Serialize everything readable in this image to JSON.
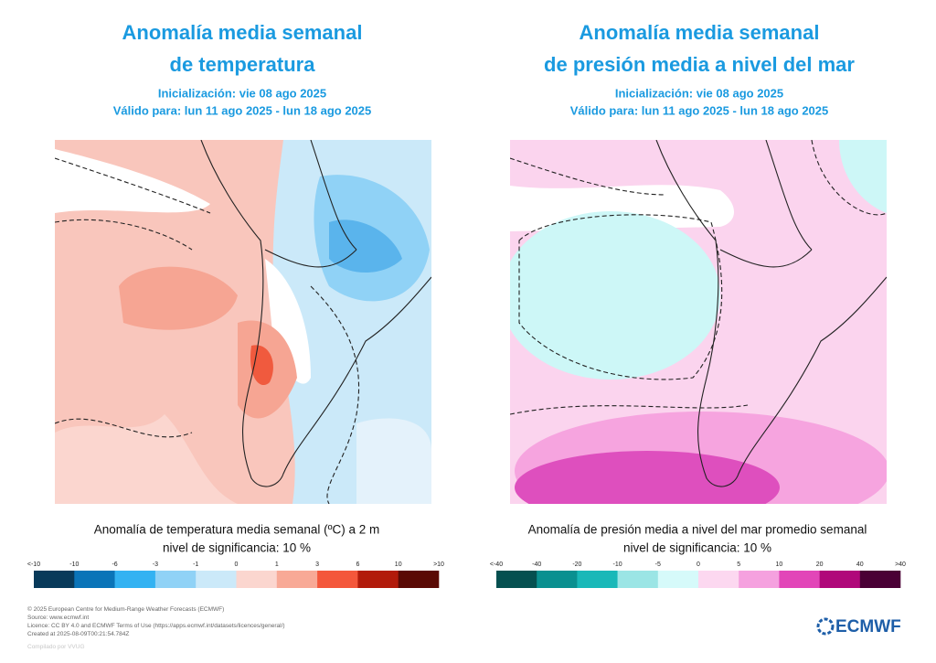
{
  "panels": [
    {
      "title": [
        "Anomalía media semanal",
        "de temperatura"
      ],
      "initialization": "Inicialización: vie 08 ago 2025",
      "valid": "Válido para: lun 11 ago 2025 - lun 18 ago 2025",
      "caption": "Anomalía de temperatura media semanal (ºC) a 2 m",
      "significance": "nivel de significancia: 10 %",
      "colorbar": {
        "labels": [
          "<-10",
          "-10",
          "-6",
          "-3",
          "-1",
          "0",
          "1",
          "3",
          "6",
          "10",
          ">10"
        ],
        "colors": [
          "#083a5a",
          "#0a74b8",
          "#33b2f2",
          "#90d2f6",
          "#cbe9f9",
          "#fbd6cf",
          "#f8a996",
          "#f4573b",
          "#b21b0b",
          "#5a0a05"
        ]
      }
    },
    {
      "title": [
        "Anomalía media semanal",
        "de presión media a nivel del mar"
      ],
      "initialization": "Inicialización: vie 08 ago 2025",
      "valid": "Válido para: lun 11 ago 2025 - lun 18 ago 2025",
      "caption": "Anomalía de presión media a nivel del mar promedio semanal",
      "significance": "nivel de significancia: 10 %",
      "colorbar": {
        "labels": [
          "<-40",
          "-40",
          "-20",
          "-10",
          "-5",
          "0",
          "5",
          "10",
          "20",
          "40",
          ">40"
        ],
        "colors": [
          "#055050",
          "#0a9090",
          "#19b8b8",
          "#9be5e5",
          "#d6fafa",
          "#fcd8f0",
          "#f5a1df",
          "#e246b8",
          "#b0087a",
          "#4a0035"
        ]
      }
    }
  ],
  "footer": {
    "lines": [
      "© 2025 European Centre for Medium-Range Weather Forecasts (ECMWF)",
      "Source: www.ecmwf.int",
      "Licence: CC BY 4.0 and ECMWF Terms of Use (https://apps.ecmwf.int/datasets/licences/general/)",
      "Created at 2025-08-09T00:21:54.784Z"
    ],
    "compiled": "Compilado por VVUG"
  },
  "logo": "ECMWF"
}
